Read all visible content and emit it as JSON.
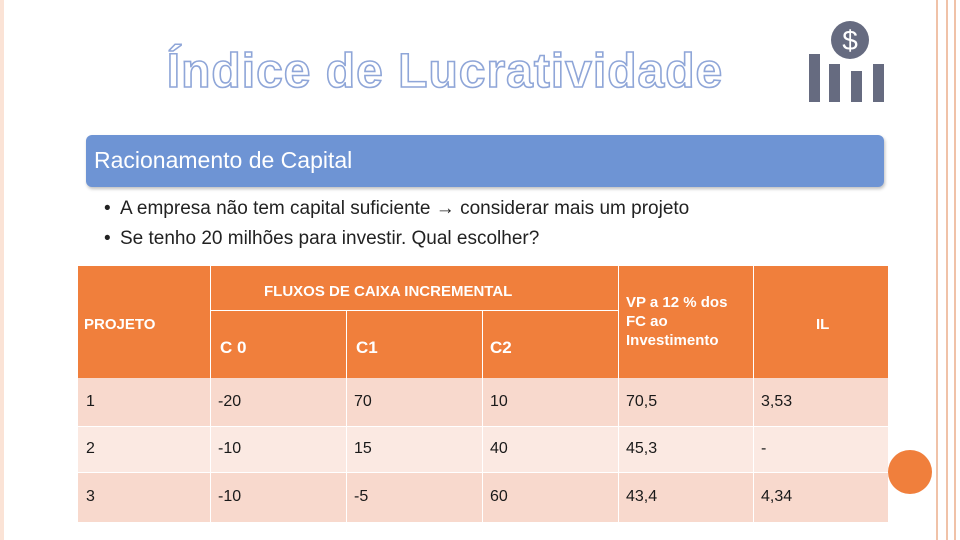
{
  "title": "Índice de Lucratividade",
  "icon": "money-growth-icon",
  "banner": "Racionamento de Capital",
  "bullets": [
    "A empresa não tem capital suficiente",
    "considerar mais um projeto",
    "Se tenho 20 milhões para investir. Qual escolher?"
  ],
  "bullet_arrow": "→",
  "table": {
    "header_group": "FLUXOS DE CAIXA INCREMENTAL",
    "col_projeto": "PROJETO",
    "col_c0": "C 0",
    "col_c1": "C1",
    "col_c2": "C2",
    "col_vp": "VP a 12 % dos FC ao Investimento",
    "col_il": "IL",
    "rows": [
      {
        "projeto": "1",
        "c0": "-20",
        "c1": "70",
        "c2": "10",
        "vp": "70,5",
        "il": "3,53"
      },
      {
        "projeto": "2",
        "c0": "-10",
        "c1": "15",
        "c2": "40",
        "vp": "45,3",
        "il": "-"
      },
      {
        "projeto": "3",
        "c0": "-10",
        "c1": "-5",
        "c2": "60",
        "vp": "43,4",
        "il": "4,34"
      }
    ]
  },
  "colors": {
    "accent": "#f07f3c",
    "banner": "#6e94d4",
    "row_light": "#fbe9e2",
    "row_dark": "#f8d9cd",
    "icon": "#666b80"
  }
}
